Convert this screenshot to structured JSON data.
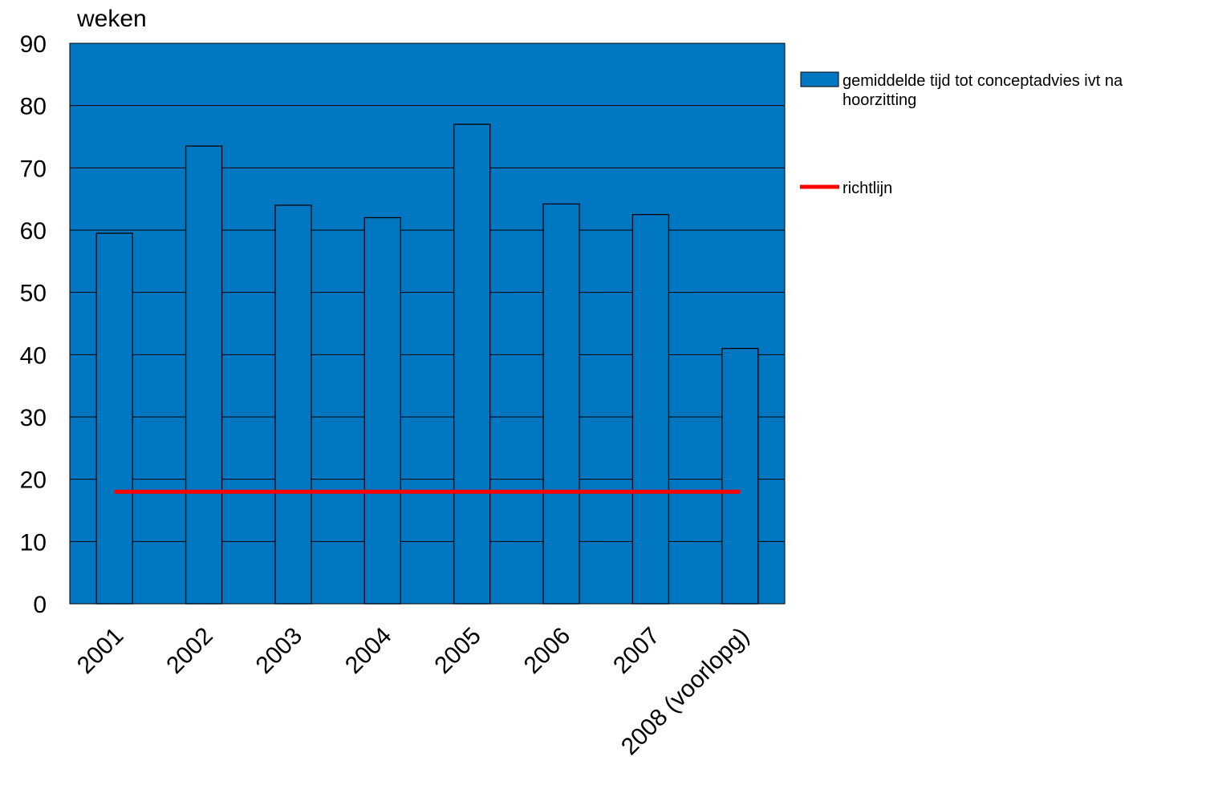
{
  "chart_data": {
    "type": "bar",
    "ylabel": "weken",
    "xlabel": "",
    "ylim": [
      0,
      90
    ],
    "yticks": [
      0,
      10,
      20,
      30,
      40,
      50,
      60,
      70,
      80,
      90
    ],
    "grid": true,
    "legend_position": "right",
    "categories": [
      "2001",
      "2002",
      "2003",
      "2004",
      "2005",
      "2006",
      "2007",
      "2008 (voorlopg)"
    ],
    "series": [
      {
        "name": "gemiddelde tijd tot conceptadvies ivt na hoorzitting",
        "kind": "bar",
        "color": "#0077c0",
        "values": [
          59.5,
          73.5,
          64,
          62,
          77,
          64.2,
          62.5,
          41
        ]
      },
      {
        "name": "richtlijn",
        "kind": "line",
        "color": "#ff0000",
        "values": [
          18,
          18,
          18,
          18,
          18,
          18,
          18,
          18
        ]
      }
    ],
    "legend_lines": {
      "bar": [
        "gemiddelde tijd tot conceptadvies ivt na",
        "hoorzitting"
      ],
      "line": [
        "richtlijn"
      ]
    },
    "plot_background": "#0077c0"
  }
}
